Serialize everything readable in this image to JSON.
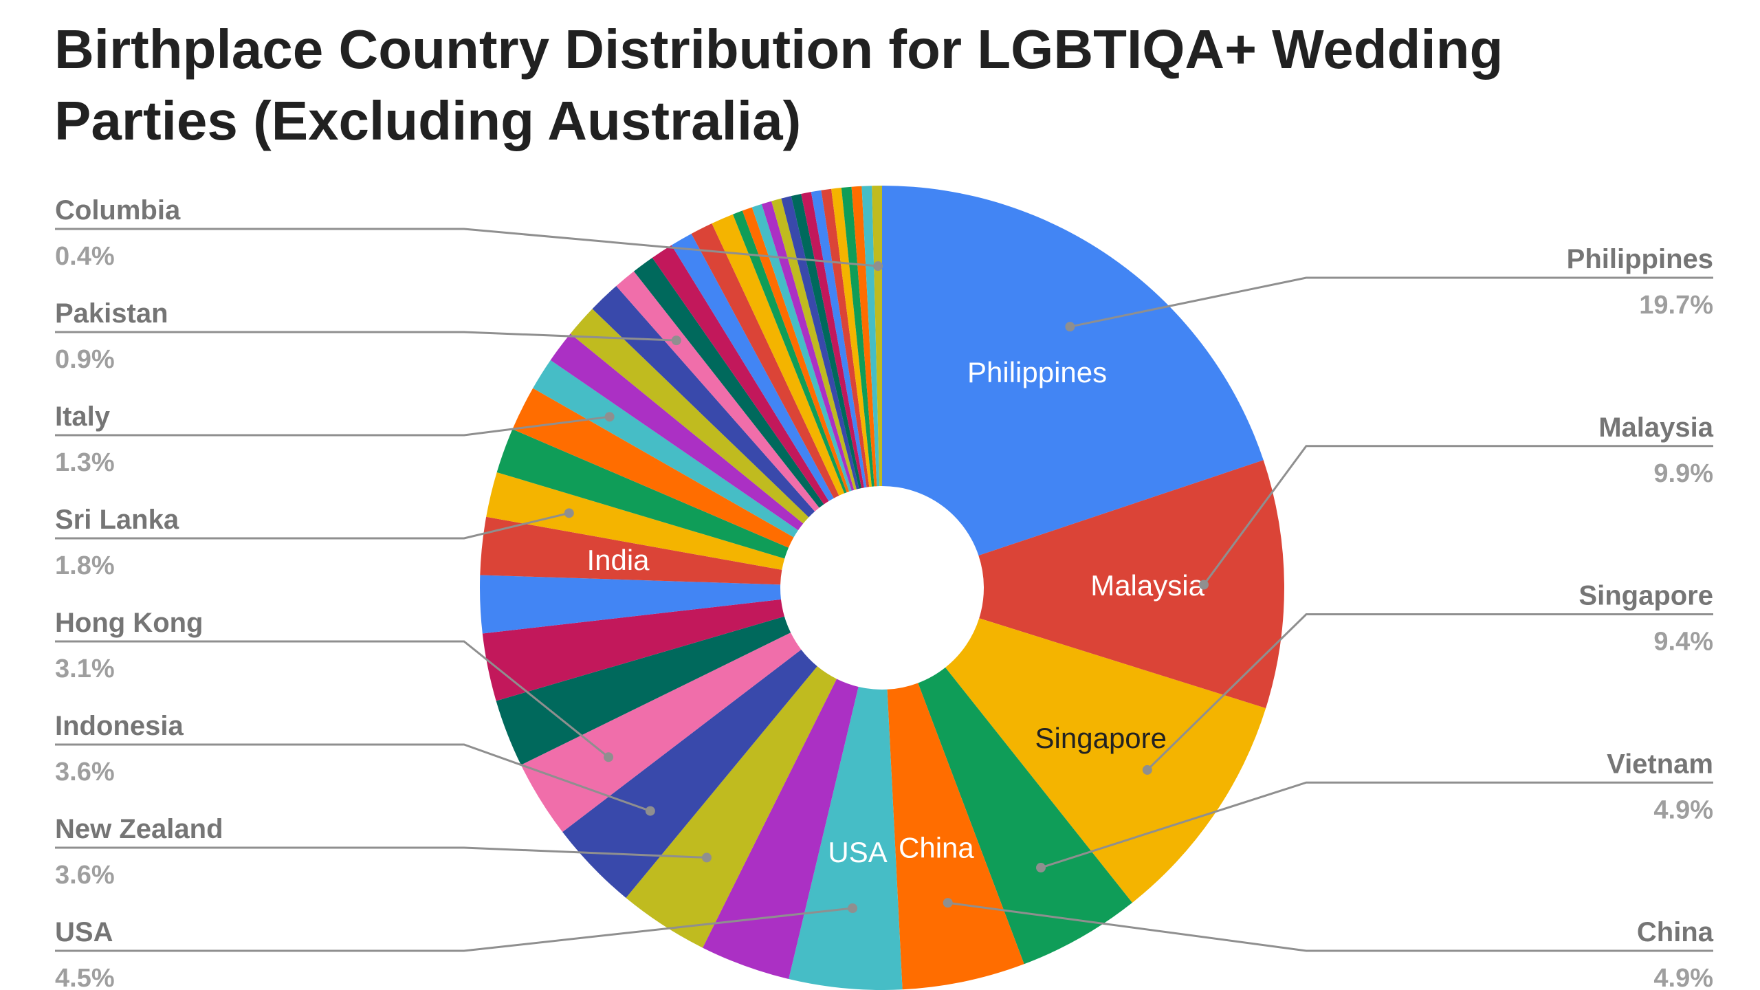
{
  "chart_data": {
    "type": "pie",
    "title": "Birthplace Country Distribution for LGBTIQA+ Wedding Parties (Excluding Australia)",
    "donut": true,
    "unit": "%",
    "slices": [
      {
        "label": "Philippines",
        "value": 19.7,
        "color": "#4285F4",
        "inner_label": "Philippines",
        "legend_side": "right"
      },
      {
        "label": "Malaysia",
        "value": 9.9,
        "color": "#DB4437",
        "inner_label": "Malaysia",
        "legend_side": "right"
      },
      {
        "label": "Singapore",
        "value": 9.4,
        "color": "#F4B400",
        "inner_label": "Singapore",
        "legend_side": "right"
      },
      {
        "label": "Vietnam",
        "value": 4.9,
        "color": "#0F9D58",
        "legend_side": "right"
      },
      {
        "label": "China",
        "value": 4.9,
        "color": "#FF6D00",
        "inner_label": "China",
        "legend_side": "right"
      },
      {
        "label": "USA",
        "value": 4.5,
        "color": "#46BDC6",
        "inner_label": "USA",
        "legend_side": "left"
      },
      {
        "label": "",
        "value": 3.6,
        "color": "#AB30C4"
      },
      {
        "label": "New Zealand",
        "value": 3.6,
        "color": "#C0BB1F",
        "legend_side": "left"
      },
      {
        "label": "Indonesia",
        "value": 3.6,
        "color": "#3949AB",
        "legend_side": "left"
      },
      {
        "label": "Hong Kong",
        "value": 3.1,
        "color": "#F06EAA",
        "legend_side": "left"
      },
      {
        "label": "",
        "value": 2.7,
        "color": "#00695C"
      },
      {
        "label": "",
        "value": 2.7,
        "color": "#C2185B"
      },
      {
        "label": "",
        "value": 2.3,
        "color": "#4285F4"
      },
      {
        "label": "India",
        "value": 2.3,
        "color": "#DB4437",
        "inner_label": "India"
      },
      {
        "label": "Sri Lanka",
        "value": 1.8,
        "color": "#F4B400",
        "legend_side": "left"
      },
      {
        "label": "",
        "value": 1.8,
        "color": "#0F9D58"
      },
      {
        "label": "",
        "value": 1.8,
        "color": "#FF6D00"
      },
      {
        "label": "Italy",
        "value": 1.3,
        "color": "#46BDC6",
        "legend_side": "left"
      },
      {
        "label": "",
        "value": 1.3,
        "color": "#AB30C4"
      },
      {
        "label": "",
        "value": 1.3,
        "color": "#C0BB1F"
      },
      {
        "label": "",
        "value": 1.3,
        "color": "#3949AB"
      },
      {
        "label": "Pakistan",
        "value": 0.9,
        "color": "#F06EAA",
        "legend_side": "left"
      },
      {
        "label": "",
        "value": 0.9,
        "color": "#00695C"
      },
      {
        "label": "",
        "value": 0.9,
        "color": "#C2185B"
      },
      {
        "label": "",
        "value": 0.9,
        "color": "#4285F4"
      },
      {
        "label": "",
        "value": 0.9,
        "color": "#DB4437"
      },
      {
        "label": "",
        "value": 0.9,
        "color": "#F4B400"
      },
      {
        "label": "",
        "value": 0.4,
        "color": "#0F9D58"
      },
      {
        "label": "",
        "value": 0.4,
        "color": "#FF6D00"
      },
      {
        "label": "",
        "value": 0.4,
        "color": "#46BDC6"
      },
      {
        "label": "",
        "value": 0.4,
        "color": "#AB30C4"
      },
      {
        "label": "",
        "value": 0.4,
        "color": "#C0BB1F"
      },
      {
        "label": "",
        "value": 0.4,
        "color": "#3949AB"
      },
      {
        "label": "",
        "value": 0.4,
        "color": "#00695C"
      },
      {
        "label": "",
        "value": 0.4,
        "color": "#C2185B"
      },
      {
        "label": "",
        "value": 0.4,
        "color": "#4285F4"
      },
      {
        "label": "",
        "value": 0.4,
        "color": "#DB4437"
      },
      {
        "label": "",
        "value": 0.4,
        "color": "#F4B400"
      },
      {
        "label": "",
        "value": 0.4,
        "color": "#0F9D58"
      },
      {
        "label": "",
        "value": 0.4,
        "color": "#FF6D00"
      },
      {
        "label": "",
        "value": 0.4,
        "color": "#46BDC6"
      },
      {
        "label": "Columbia",
        "value": 0.4,
        "color": "#C0BB1F",
        "legend_side": "left"
      }
    ]
  }
}
